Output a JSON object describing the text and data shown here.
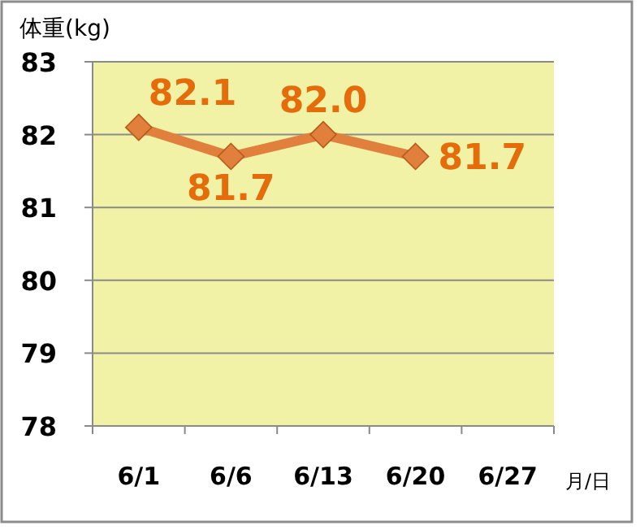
{
  "chart_data": {
    "type": "line",
    "ylabel": "体重(kg)",
    "xlabel": "月/日",
    "categories": [
      "6/1",
      "6/6",
      "6/13",
      "6/20",
      "6/27"
    ],
    "series": [
      {
        "color": "#e0803c",
        "values": [
          82.1,
          81.7,
          82.0,
          81.7,
          null
        ],
        "value_labels": [
          "82.1",
          "81.7",
          "82.0",
          "81.7",
          null
        ]
      }
    ],
    "ylim": [
      78,
      83
    ],
    "yticks": [
      78,
      79,
      80,
      81,
      82,
      83
    ],
    "grid": "y",
    "marker": "diamond",
    "line_style": "solid"
  }
}
